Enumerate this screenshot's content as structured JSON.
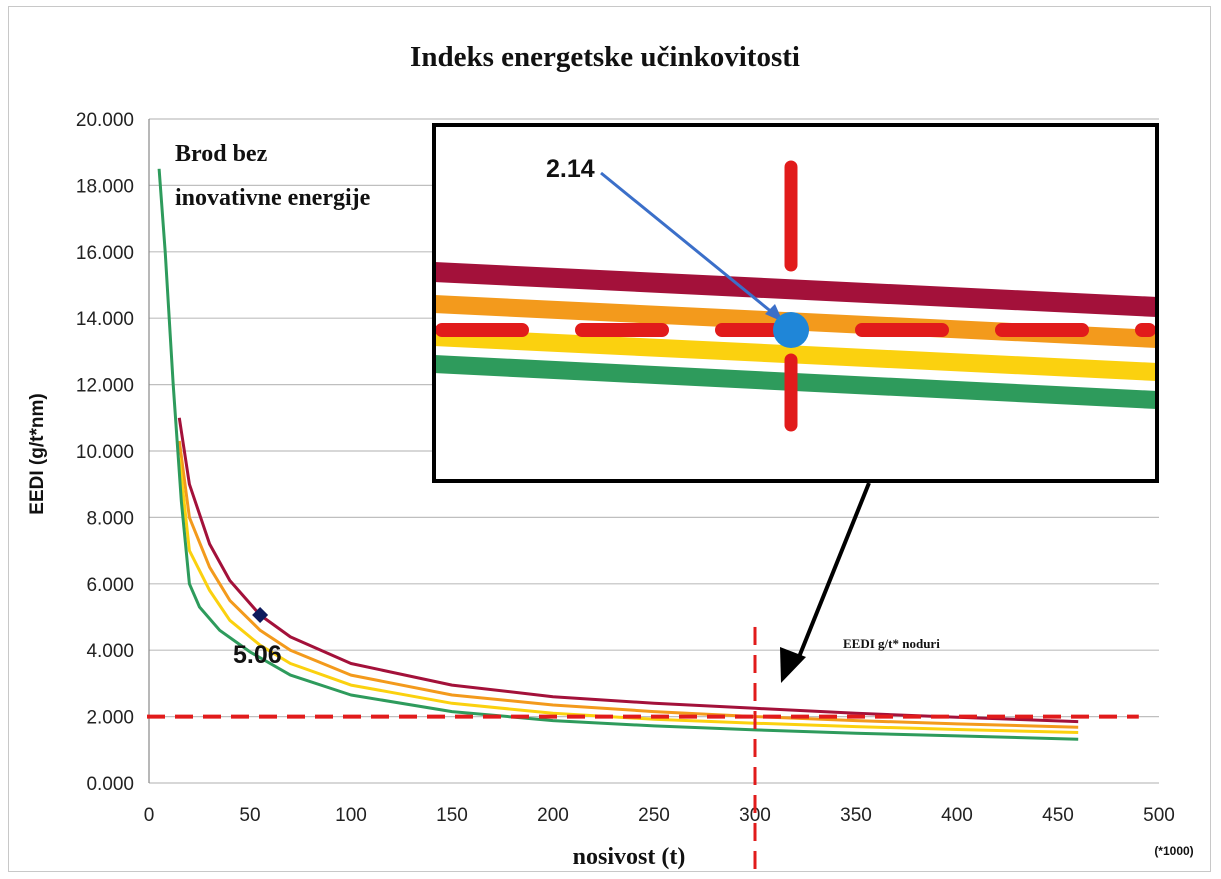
{
  "chart_data": {
    "type": "line",
    "title": "Indeks energetske učinkovitosti",
    "xlabel": "nosivost (t)",
    "x_unit_note": "(*1000)",
    "ylabel": "EEDI (g/t*nm)",
    "xlim": [
      0,
      500
    ],
    "ylim": [
      0,
      20
    ],
    "x_ticks": [
      "0",
      "50",
      "100",
      "150",
      "200",
      "250",
      "300",
      "350",
      "400",
      "450",
      "500"
    ],
    "y_ticks": [
      "0.000",
      "2.000",
      "4.000",
      "6.000",
      "8.000",
      "10.000",
      "12.000",
      "14.000",
      "16.000",
      "18.000",
      "20.000"
    ],
    "grid": "horizontal",
    "series": [
      {
        "color": "#a3113a",
        "x": [
          15,
          20,
          30,
          40,
          55,
          70,
          100,
          150,
          200,
          250,
          300,
          350,
          400,
          460
        ],
        "y": [
          11.0,
          9.0,
          7.2,
          6.1,
          5.06,
          4.4,
          3.6,
          2.95,
          2.6,
          2.4,
          2.25,
          2.1,
          1.98,
          1.85
        ]
      },
      {
        "color": "#f39a1c",
        "x": [
          15,
          20,
          30,
          40,
          55,
          70,
          100,
          150,
          200,
          250,
          300,
          350,
          400,
          460
        ],
        "y": [
          10.3,
          8.0,
          6.5,
          5.5,
          4.6,
          4.0,
          3.25,
          2.65,
          2.35,
          2.15,
          2.0,
          1.88,
          1.78,
          1.68
        ]
      },
      {
        "color": "#fbd10f",
        "x": [
          15,
          20,
          30,
          40,
          55,
          70,
          100,
          150,
          200,
          250,
          300,
          350,
          400,
          460
        ],
        "y": [
          9.8,
          7.0,
          5.8,
          4.9,
          4.15,
          3.6,
          2.95,
          2.4,
          2.1,
          1.92,
          1.8,
          1.7,
          1.61,
          1.52
        ]
      },
      {
        "color": "#2e9b5c",
        "x": [
          5,
          8,
          12,
          16,
          20,
          25,
          35,
          50,
          70,
          100,
          150,
          200,
          250,
          300,
          350,
          400,
          460
        ],
        "y": [
          18.5,
          16.0,
          12.0,
          8.5,
          6.0,
          5.3,
          4.6,
          3.95,
          3.25,
          2.65,
          2.15,
          1.88,
          1.72,
          1.6,
          1.5,
          1.42,
          1.32
        ]
      }
    ],
    "reference_lines": {
      "horizontal_y": 2.0,
      "vertical_x": 300,
      "color": "#e11b1b",
      "label": "EEDI  g/t* noduri"
    },
    "marked_point": {
      "x": 55,
      "y": 5.06,
      "label": "5.06",
      "color": "#0d1a5c"
    },
    "annotations": {
      "brod_line1": "Brod bez",
      "brod_line2": "inovativne energije"
    },
    "inset": {
      "label": "2.14",
      "point_color": "#1f86d8",
      "band_colors": [
        "#a3113a",
        "#f39a1c",
        "#fbd10f",
        "#2e9b5c"
      ],
      "arrow_color": "#3b6fc9"
    }
  }
}
